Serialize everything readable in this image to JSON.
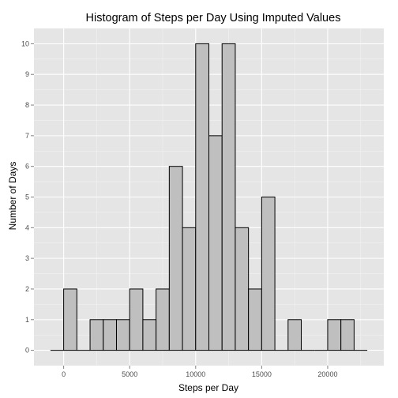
{
  "chart_data": {
    "type": "bar",
    "title": "Histogram of Steps per Day Using Imputed Values",
    "xlabel": "Steps per Day",
    "ylabel": "Number of Days",
    "bin_width": 1000,
    "bins": [
      {
        "x0": -1000,
        "x1": 0,
        "count": 0
      },
      {
        "x0": 0,
        "x1": 1000,
        "count": 2
      },
      {
        "x0": 1000,
        "x1": 2000,
        "count": 0
      },
      {
        "x0": 2000,
        "x1": 3000,
        "count": 1
      },
      {
        "x0": 3000,
        "x1": 4000,
        "count": 1
      },
      {
        "x0": 4000,
        "x1": 5000,
        "count": 1
      },
      {
        "x0": 5000,
        "x1": 6000,
        "count": 2
      },
      {
        "x0": 6000,
        "x1": 7000,
        "count": 1
      },
      {
        "x0": 7000,
        "x1": 8000,
        "count": 2
      },
      {
        "x0": 8000,
        "x1": 9000,
        "count": 6
      },
      {
        "x0": 9000,
        "x1": 10000,
        "count": 4
      },
      {
        "x0": 10000,
        "x1": 11000,
        "count": 10
      },
      {
        "x0": 11000,
        "x1": 12000,
        "count": 7
      },
      {
        "x0": 12000,
        "x1": 13000,
        "count": 10
      },
      {
        "x0": 13000,
        "x1": 14000,
        "count": 4
      },
      {
        "x0": 14000,
        "x1": 15000,
        "count": 2
      },
      {
        "x0": 15000,
        "x1": 16000,
        "count": 5
      },
      {
        "x0": 16000,
        "x1": 17000,
        "count": 0
      },
      {
        "x0": 17000,
        "x1": 18000,
        "count": 1
      },
      {
        "x0": 18000,
        "x1": 19000,
        "count": 0
      },
      {
        "x0": 19000,
        "x1": 20000,
        "count": 0
      },
      {
        "x0": 20000,
        "x1": 21000,
        "count": 1
      },
      {
        "x0": 21000,
        "x1": 22000,
        "count": 1
      },
      {
        "x0": 22000,
        "x1": 23000,
        "count": 0
      }
    ],
    "xlim": [
      -2250,
      24250
    ],
    "ylim": [
      -0.5,
      10.5
    ],
    "x_ticks": [
      0,
      5000,
      10000,
      15000,
      20000
    ],
    "x_tick_labels": [
      "0",
      "5000",
      "10000",
      "15000",
      "20000"
    ],
    "y_ticks": [
      0,
      1,
      2,
      3,
      4,
      5,
      6,
      7,
      8,
      9,
      10
    ],
    "y_tick_labels": [
      "0",
      "1",
      "2",
      "3",
      "4",
      "5",
      "6",
      "7",
      "8",
      "9",
      "10"
    ],
    "grid": true,
    "colors": {
      "panel_background": "#e5e5e5",
      "grid_major": "#ffffff",
      "grid_minor": "#f2f2f2",
      "bar_fill": "#bfbfbf",
      "bar_outline": "#000000",
      "tick_mark": "#7f7f7f"
    }
  }
}
